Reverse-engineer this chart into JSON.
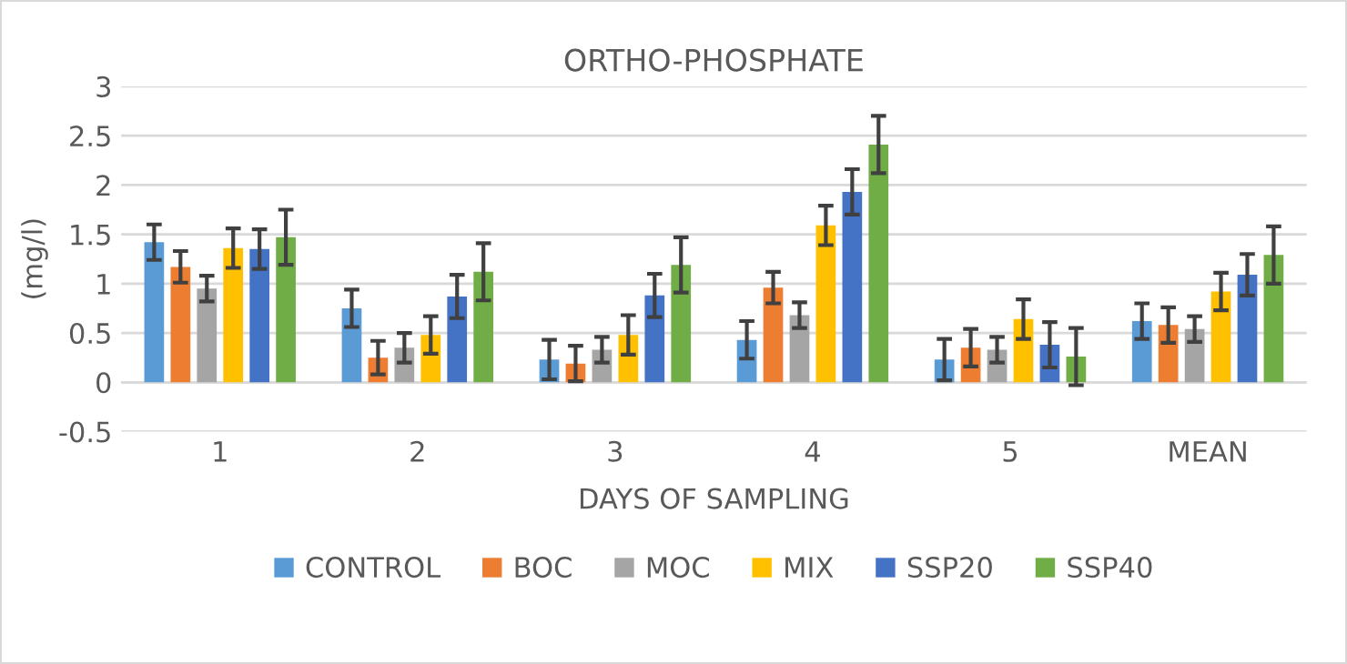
{
  "chart_data": {
    "type": "bar",
    "title": "ORTHO-PHOSPHATE",
    "xlabel": "DAYS OF SAMPLING",
    "ylabel": "(mg/l)",
    "categories": [
      "1",
      "2",
      "3",
      "4",
      "5",
      "MEAN"
    ],
    "series": [
      {
        "name": "CONTROL",
        "color": "#5b9bd5",
        "values": [
          1.42,
          0.75,
          0.23,
          0.43,
          0.23,
          0.62
        ],
        "errors": [
          0.18,
          0.19,
          0.2,
          0.19,
          0.21,
          0.18
        ]
      },
      {
        "name": "BOC",
        "color": "#ed7d31",
        "values": [
          1.17,
          0.25,
          0.19,
          0.96,
          0.35,
          0.58
        ],
        "errors": [
          0.16,
          0.17,
          0.18,
          0.16,
          0.19,
          0.18
        ]
      },
      {
        "name": "MOC",
        "color": "#a5a5a5",
        "values": [
          0.95,
          0.35,
          0.33,
          0.68,
          0.33,
          0.54
        ],
        "errors": [
          0.13,
          0.15,
          0.13,
          0.13,
          0.13,
          0.13
        ]
      },
      {
        "name": "MIX",
        "color": "#ffc000",
        "values": [
          1.36,
          0.48,
          0.48,
          1.59,
          0.64,
          0.92
        ],
        "errors": [
          0.2,
          0.19,
          0.2,
          0.2,
          0.2,
          0.19
        ]
      },
      {
        "name": "SSP20",
        "color": "#4472c4",
        "values": [
          1.35,
          0.87,
          0.88,
          1.93,
          0.38,
          1.09
        ],
        "errors": [
          0.2,
          0.22,
          0.22,
          0.23,
          0.23,
          0.21
        ]
      },
      {
        "name": "SSP40",
        "color": "#70ad47",
        "values": [
          1.47,
          1.12,
          1.19,
          2.41,
          0.26,
          1.29
        ],
        "errors": [
          0.28,
          0.29,
          0.28,
          0.29,
          0.29,
          0.29
        ]
      }
    ],
    "ylim": [
      -0.5,
      3
    ],
    "yticks": [
      -0.5,
      0,
      0.5,
      1,
      1.5,
      2,
      2.5,
      3
    ],
    "grid": "y",
    "legend": "bottom"
  }
}
